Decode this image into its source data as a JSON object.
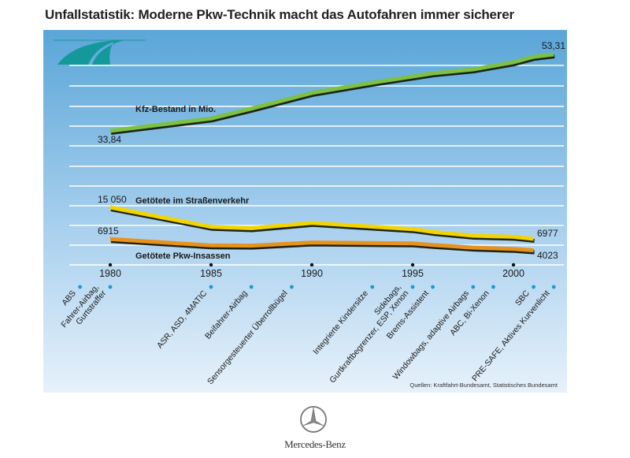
{
  "title": "Unfallstatistik: Moderne Pkw-Technik macht das Autofahren immer sicherer",
  "brand": "Mercedes-Benz",
  "source": "Quellen: Kraftfahrt-Bundesamt, Statistisches Bundesamt",
  "chart_data": {
    "type": "line",
    "title": "Unfallstatistik: Moderne Pkw-Technik macht das Autofahren immer sicherer",
    "x_ticks": [
      "1980",
      "1985",
      "1990",
      "1995",
      "2000"
    ],
    "xlim": [
      1980,
      2002
    ],
    "grid": true,
    "series": [
      {
        "name": "Kfz-Bestand in Mio.",
        "color": "#7cc142",
        "x": [
          1980,
          1985,
          1987,
          1990,
          1993,
          1995,
          1996,
          1998,
          2000,
          2001,
          2002
        ],
        "values": [
          33.84,
          37.0,
          39.5,
          43.5,
          46.1,
          47.7,
          48.5,
          49.5,
          51.3,
          52.7,
          53.31
        ],
        "start_label": "33,84",
        "end_label": "53,31"
      },
      {
        "name": "Getötete im Straßenverkehr",
        "color": "#f2d400",
        "x": [
          1980,
          1985,
          1987,
          1990,
          1995,
          1996,
          1998,
          2000,
          2001
        ],
        "values": [
          15050,
          10070,
          9700,
          11046,
          9454,
          8758,
          7792,
          7503,
          6977
        ],
        "start_label": "15 050",
        "end_label": "6977"
      },
      {
        "name": "Getötete Pkw-Insassen",
        "color": "#e8921c",
        "x": [
          1980,
          1985,
          1987,
          1990,
          1995,
          1996,
          1998,
          2000,
          2001
        ],
        "values": [
          6915,
          5300,
          5250,
          6050,
          5800,
          5400,
          4740,
          4396,
          4023
        ],
        "start_label": "6915",
        "end_label": "4023"
      }
    ],
    "annotations": [
      {
        "year": 1978.5,
        "lines": [
          "ABS"
        ]
      },
      {
        "year": 1980,
        "lines": [
          "Fahrer-Airbag,",
          "Gurtstraffer"
        ]
      },
      {
        "year": 1985,
        "lines": [
          "ASR, ASD, 4MATIC"
        ]
      },
      {
        "year": 1987,
        "lines": [
          "Beifahrer-Airbag"
        ]
      },
      {
        "year": 1989,
        "lines": [
          "Sensorgesteuerter Überrollbügel"
        ]
      },
      {
        "year": 1993,
        "lines": [
          "Integrierte Kindersitze"
        ]
      },
      {
        "year": 1995,
        "lines": [
          "Sidebags,",
          "Gurtkraftbegrenzer, ESP, Xenon"
        ]
      },
      {
        "year": 1996,
        "lines": [
          "Brems-Assistent"
        ]
      },
      {
        "year": 1998,
        "lines": [
          "Windowbags, adaptive Airbags"
        ]
      },
      {
        "year": 1999,
        "lines": [
          "ABC, Bi-Xenon"
        ]
      },
      {
        "year": 2001,
        "lines": [
          "SBC"
        ]
      },
      {
        "year": 2002,
        "lines": [
          "PRE-SAFE, Aktives Kurvenlicht"
        ]
      }
    ],
    "annotation_dot_color": "#1a9ad6"
  }
}
